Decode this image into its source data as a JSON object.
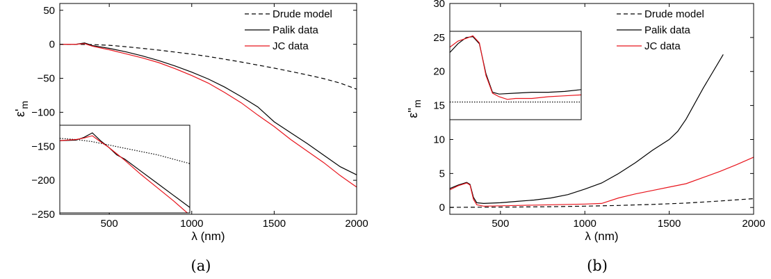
{
  "figure": {
    "captions": [
      "(a)",
      "(b)"
    ]
  },
  "chart_data": [
    {
      "type": "line",
      "xlabel": "λ (nm)",
      "ylabel_main": "ε'",
      "ylabel_sub": "m",
      "xlim": [
        200,
        2000
      ],
      "ylim": [
        -250,
        60
      ],
      "xticks": [
        500,
        1000,
        1500,
        2000
      ],
      "yticks": [
        50,
        0,
        -50,
        -100,
        -150,
        -200,
        -250
      ],
      "ytick_labels": [
        "50",
        "0",
        "−50",
        "−100",
        "−150",
        "−200",
        "−250"
      ],
      "legend_position": "top-right",
      "series": [
        {
          "name": "Drude model",
          "color": "#000000",
          "dash": "dashed",
          "x": [
            200,
            300,
            400,
            500,
            600,
            700,
            800,
            900,
            1000,
            1100,
            1200,
            1300,
            1400,
            1500,
            1600,
            1700,
            1800,
            1900,
            2000
          ],
          "y": [
            0,
            0,
            -0.5,
            -1.5,
            -3.5,
            -6,
            -8.5,
            -11.5,
            -14.5,
            -18,
            -22,
            -26,
            -30.5,
            -35,
            -40,
            -45,
            -50.5,
            -57,
            -66
          ]
        },
        {
          "name": "Palik data",
          "color": "#000000",
          "dash": "solid",
          "x": [
            200,
            300,
            350,
            400,
            500,
            600,
            700,
            800,
            900,
            1000,
            1100,
            1200,
            1300,
            1400,
            1500,
            1600,
            1700,
            1800,
            1900,
            2000
          ],
          "y": [
            0,
            0,
            2,
            -2,
            -6,
            -11,
            -17,
            -24,
            -32,
            -41,
            -51,
            -63,
            -77,
            -92,
            -114,
            -130,
            -146,
            -163,
            -180,
            -192
          ]
        },
        {
          "name": "JC data",
          "color": "#e8141c",
          "dash": "solid",
          "x": [
            200,
            300,
            350,
            400,
            500,
            600,
            700,
            800,
            900,
            1000,
            1100,
            1200,
            1300,
            1400,
            1500,
            1600,
            1700,
            1800,
            1900,
            2000
          ],
          "y": [
            0,
            0,
            1,
            -3,
            -8,
            -14,
            -20,
            -27,
            -36,
            -46,
            -57,
            -71,
            -86,
            -104,
            -121,
            -140,
            -157,
            -174,
            -193,
            -210
          ]
        }
      ],
      "inset": {
        "xlim": [
          200,
          1000
        ],
        "ylim": [
          -35,
          5
        ],
        "series": [
          {
            "name": "Drude model",
            "color": "#000000",
            "dash": "dotted",
            "x": [
              200,
              300,
              400,
              500,
              600,
              700,
              800,
              900,
              1000
            ],
            "y": [
              -1,
              -1.5,
              -2.5,
              -4,
              -5.5,
              -7,
              -8.5,
              -10.5,
              -12.5
            ]
          },
          {
            "name": "Palik data",
            "color": "#000000",
            "dash": "solid",
            "x": [
              200,
              300,
              350,
              400,
              450,
              500,
              550,
              600,
              700,
              800,
              900,
              1000
            ],
            "y": [
              -2,
              -1.8,
              -0.5,
              1.5,
              -2,
              -5,
              -8.5,
              -10.5,
              -16,
              -21.5,
              -27,
              -32.5
            ]
          },
          {
            "name": "JC data",
            "color": "#e8141c",
            "dash": "solid",
            "x": [
              200,
              300,
              350,
              400,
              450,
              500,
              550,
              600,
              700,
              800,
              900,
              1000
            ],
            "y": [
              -2,
              -1.5,
              -0.8,
              0.2,
              -2.5,
              -5,
              -8,
              -11,
              -17.5,
              -23.5,
              -29.5,
              -36
            ]
          }
        ]
      }
    },
    {
      "type": "line",
      "xlabel": "λ (nm)",
      "ylabel_main": "ε''",
      "ylabel_sub": "m",
      "xlim": [
        200,
        2000
      ],
      "ylim": [
        -1,
        30
      ],
      "xticks": [
        500,
        1000,
        1500,
        2000
      ],
      "yticks": [
        0,
        5,
        10,
        15,
        20,
        25,
        30
      ],
      "legend_position": "top-right",
      "series": [
        {
          "name": "Drude model",
          "color": "#000000",
          "dash": "dashed",
          "x": [
            200,
            400,
            600,
            800,
            1000,
            1200,
            1400,
            1600,
            1800,
            2000
          ],
          "y": [
            0.02,
            0.04,
            0.07,
            0.12,
            0.2,
            0.3,
            0.45,
            0.65,
            0.95,
            1.3
          ]
        },
        {
          "name": "Palik data",
          "color": "#000000",
          "dash": "solid",
          "x": [
            200,
            250,
            300,
            320,
            340,
            360,
            400,
            500,
            600,
            700,
            800,
            900,
            1000,
            1100,
            1200,
            1300,
            1400,
            1500,
            1550,
            1600,
            1700,
            1820
          ],
          "y": [
            2.8,
            3.3,
            3.7,
            3.4,
            1.5,
            0.7,
            0.6,
            0.7,
            0.9,
            1.1,
            1.4,
            1.9,
            2.7,
            3.6,
            5.0,
            6.6,
            8.4,
            10.0,
            11.2,
            13.0,
            17.5,
            22.5
          ]
        },
        {
          "name": "JC data",
          "color": "#e8141c",
          "dash": "solid",
          "x": [
            200,
            250,
            300,
            320,
            340,
            360,
            400,
            500,
            600,
            700,
            800,
            900,
            1000,
            1100,
            1200,
            1300,
            1400,
            1500,
            1600,
            1700,
            1800,
            1900,
            2000
          ],
          "y": [
            2.6,
            3.2,
            3.6,
            3.3,
            1.2,
            0.4,
            0.2,
            0.25,
            0.3,
            0.35,
            0.4,
            0.45,
            0.5,
            0.6,
            1.4,
            2.0,
            2.5,
            3.0,
            3.5,
            4.4,
            5.3,
            6.3,
            7.4
          ]
        }
      ],
      "inset": {
        "xlim": [
          200,
          1000
        ],
        "ylim": [
          -1,
          4
        ],
        "series": [
          {
            "name": "Drude model",
            "color": "#000000",
            "dash": "dotted",
            "x": [
              200,
              1000
            ],
            "y": [
              0,
              0
            ]
          },
          {
            "name": "Palik data",
            "color": "#000000",
            "dash": "solid",
            "x": [
              200,
              250,
              300,
              340,
              380,
              420,
              460,
              500,
              600,
              700,
              800,
              900,
              1000
            ],
            "y": [
              2.8,
              3.3,
              3.65,
              3.7,
              3.3,
              1.6,
              0.55,
              0.45,
              0.5,
              0.55,
              0.55,
              0.6,
              0.7
            ]
          },
          {
            "name": "JC data",
            "color": "#e8141c",
            "dash": "solid",
            "x": [
              200,
              250,
              300,
              340,
              380,
              420,
              460,
              500,
              550,
              600,
              700,
              800,
              900,
              1000
            ],
            "y": [
              3.1,
              3.45,
              3.6,
              3.75,
              3.35,
              1.5,
              0.5,
              0.3,
              0.15,
              0.2,
              0.2,
              0.3,
              0.35,
              0.4
            ]
          }
        ]
      }
    }
  ]
}
